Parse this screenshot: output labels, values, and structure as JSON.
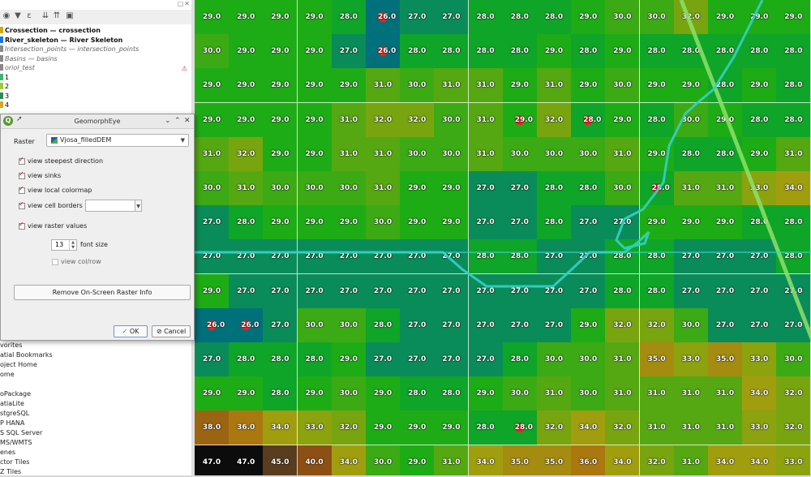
{
  "layers_panel": {
    "layers": [
      {
        "label": "Crossection — crossection",
        "style": "bold",
        "color": "#d4aa00"
      },
      {
        "label": "River_skeleton — River Skeleton",
        "style": "bold",
        "color": "#1a73e8"
      },
      {
        "label": "Intersection_points — intersection_points",
        "style": "ital",
        "color": "#888888"
      },
      {
        "label": "Basins — basins",
        "style": "ital",
        "color": "#888888"
      },
      {
        "label": "oriol_test",
        "style": "ital",
        "color": "#888888"
      },
      {
        "label": "1",
        "style": "plain",
        "color": "#3cb371"
      },
      {
        "label": "2",
        "style": "plain",
        "color": "#9acd32"
      },
      {
        "label": "3",
        "style": "plain",
        "color": "#2e8b57"
      },
      {
        "label": "4",
        "style": "plain",
        "color": "#daa520"
      }
    ],
    "warning_icon": "warning-triangle-icon"
  },
  "browser_panel": {
    "items": [
      "vorites",
      "atial Bookmarks",
      "oject Home",
      "ome",
      "",
      "oPackage",
      "atiaLite",
      "stgreSQL",
      "P HANA",
      "S SQL Server",
      "MS/WMTS",
      "enes",
      "ctor Tiles",
      "Z Tiles"
    ]
  },
  "dialog": {
    "title": "GeomorphEye",
    "raster_label": "Raster",
    "raster_value": "Vjosa_filledDEM",
    "options": [
      {
        "label": "view steepest direction",
        "checked": true
      },
      {
        "label": "view sinks",
        "checked": true
      },
      {
        "label": "view local colormap",
        "checked": true
      },
      {
        "label": "view cell borders",
        "checked": true
      },
      {
        "label": "view raster values",
        "checked": true
      }
    ],
    "font_size_value": "13",
    "font_size_label": "font size",
    "view_colrow_label": "view col/row",
    "view_colrow_checked": false,
    "remove_button": "Remove On-Screen Raster Info",
    "ok_button": "OK",
    "cancel_button": "Cancel"
  },
  "map": {
    "grid": [
      [
        "29.0",
        "29.0",
        "29.0",
        "29.0",
        "28.0",
        "26.0",
        "27.0",
        "27.0",
        "28.0",
        "28.0",
        "28.0",
        "29.0",
        "30.0",
        "30.0",
        "32.0",
        "29.0",
        "29.0",
        "29.0"
      ],
      [
        "30.0",
        "29.0",
        "29.0",
        "29.0",
        "27.0",
        "26.0",
        "28.0",
        "28.0",
        "28.0",
        "28.0",
        "29.0",
        "28.0",
        "29.0",
        "28.0",
        "28.0",
        "28.0",
        "28.0",
        "28.0"
      ],
      [
        "29.0",
        "29.0",
        "29.0",
        "29.0",
        "29.0",
        "31.0",
        "30.0",
        "31.0",
        "31.0",
        "29.0",
        "31.0",
        "29.0",
        "30.0",
        "29.0",
        "29.0",
        "28.0",
        "29.0",
        "28.0"
      ],
      [
        "29.0",
        "29.0",
        "29.0",
        "29.0",
        "31.0",
        "32.0",
        "32.0",
        "30.0",
        "31.0",
        "29.0",
        "32.0",
        "28.0",
        "29.0",
        "28.0",
        "30.0",
        "29.0",
        "28.0",
        "28.0"
      ],
      [
        "31.0",
        "32.0",
        "29.0",
        "29.0",
        "31.0",
        "31.0",
        "30.0",
        "30.0",
        "31.0",
        "30.0",
        "30.0",
        "30.0",
        "31.0",
        "29.0",
        "28.0",
        "28.0",
        "29.0",
        "31.0"
      ],
      [
        "30.0",
        "31.0",
        "30.0",
        "30.0",
        "30.0",
        "31.0",
        "29.0",
        "29.0",
        "27.0",
        "27.0",
        "28.0",
        "28.0",
        "30.0",
        "28.0",
        "31.0",
        "31.0",
        "33.0",
        "34.0"
      ],
      [
        "27.0",
        "28.0",
        "29.0",
        "29.0",
        "29.0",
        "30.0",
        "29.0",
        "29.0",
        "27.0",
        "27.0",
        "28.0",
        "27.0",
        "27.0",
        "29.0",
        "29.0",
        "29.0",
        "28.0",
        "28.0"
      ],
      [
        "27.0",
        "27.0",
        "27.0",
        "27.0",
        "27.0",
        "27.0",
        "27.0",
        "27.0",
        "28.0",
        "28.0",
        "27.0",
        "27.0",
        "28.0",
        "28.0",
        "27.0",
        "27.0",
        "27.0",
        "28.0"
      ],
      [
        "29.0",
        "27.0",
        "27.0",
        "27.0",
        "27.0",
        "27.0",
        "27.0",
        "27.0",
        "27.0",
        "27.0",
        "27.0",
        "27.0",
        "28.0",
        "28.0",
        "27.0",
        "27.0",
        "27.0",
        "27.0"
      ],
      [
        "26.0",
        "26.0",
        "27.0",
        "30.0",
        "30.0",
        "28.0",
        "27.0",
        "27.0",
        "27.0",
        "27.0",
        "27.0",
        "29.0",
        "32.0",
        "32.0",
        "30.0",
        "27.0",
        "27.0",
        "27.0"
      ],
      [
        "27.0",
        "28.0",
        "28.0",
        "28.0",
        "29.0",
        "27.0",
        "27.0",
        "27.0",
        "27.0",
        "28.0",
        "30.0",
        "30.0",
        "31.0",
        "35.0",
        "33.0",
        "35.0",
        "33.0",
        "30.0"
      ],
      [
        "29.0",
        "29.0",
        "28.0",
        "29.0",
        "30.0",
        "29.0",
        "28.0",
        "28.0",
        "29.0",
        "30.0",
        "31.0",
        "30.0",
        "31.0",
        "31.0",
        "31.0",
        "31.0",
        "34.0",
        "32.0"
      ],
      [
        "38.0",
        "36.0",
        "34.0",
        "33.0",
        "32.0",
        "29.0",
        "29.0",
        "29.0",
        "28.0",
        "28.0",
        "32.0",
        "34.0",
        "32.0",
        "31.0",
        "31.0",
        "31.0",
        "33.0",
        "32.0"
      ],
      [
        "47.0",
        "47.0",
        "45.0",
        "40.0",
        "34.0",
        "30.0",
        "29.0",
        "31.0",
        "34.0",
        "35.0",
        "35.0",
        "36.0",
        "34.0",
        "32.0",
        "31.0",
        "34.0",
        "34.0",
        "33.0"
      ]
    ],
    "sinks": [
      [
        0,
        5
      ],
      [
        1,
        5
      ],
      [
        3,
        9
      ],
      [
        3,
        11
      ],
      [
        5,
        13
      ],
      [
        9,
        0
      ],
      [
        9,
        1
      ],
      [
        12,
        9
      ]
    ]
  }
}
